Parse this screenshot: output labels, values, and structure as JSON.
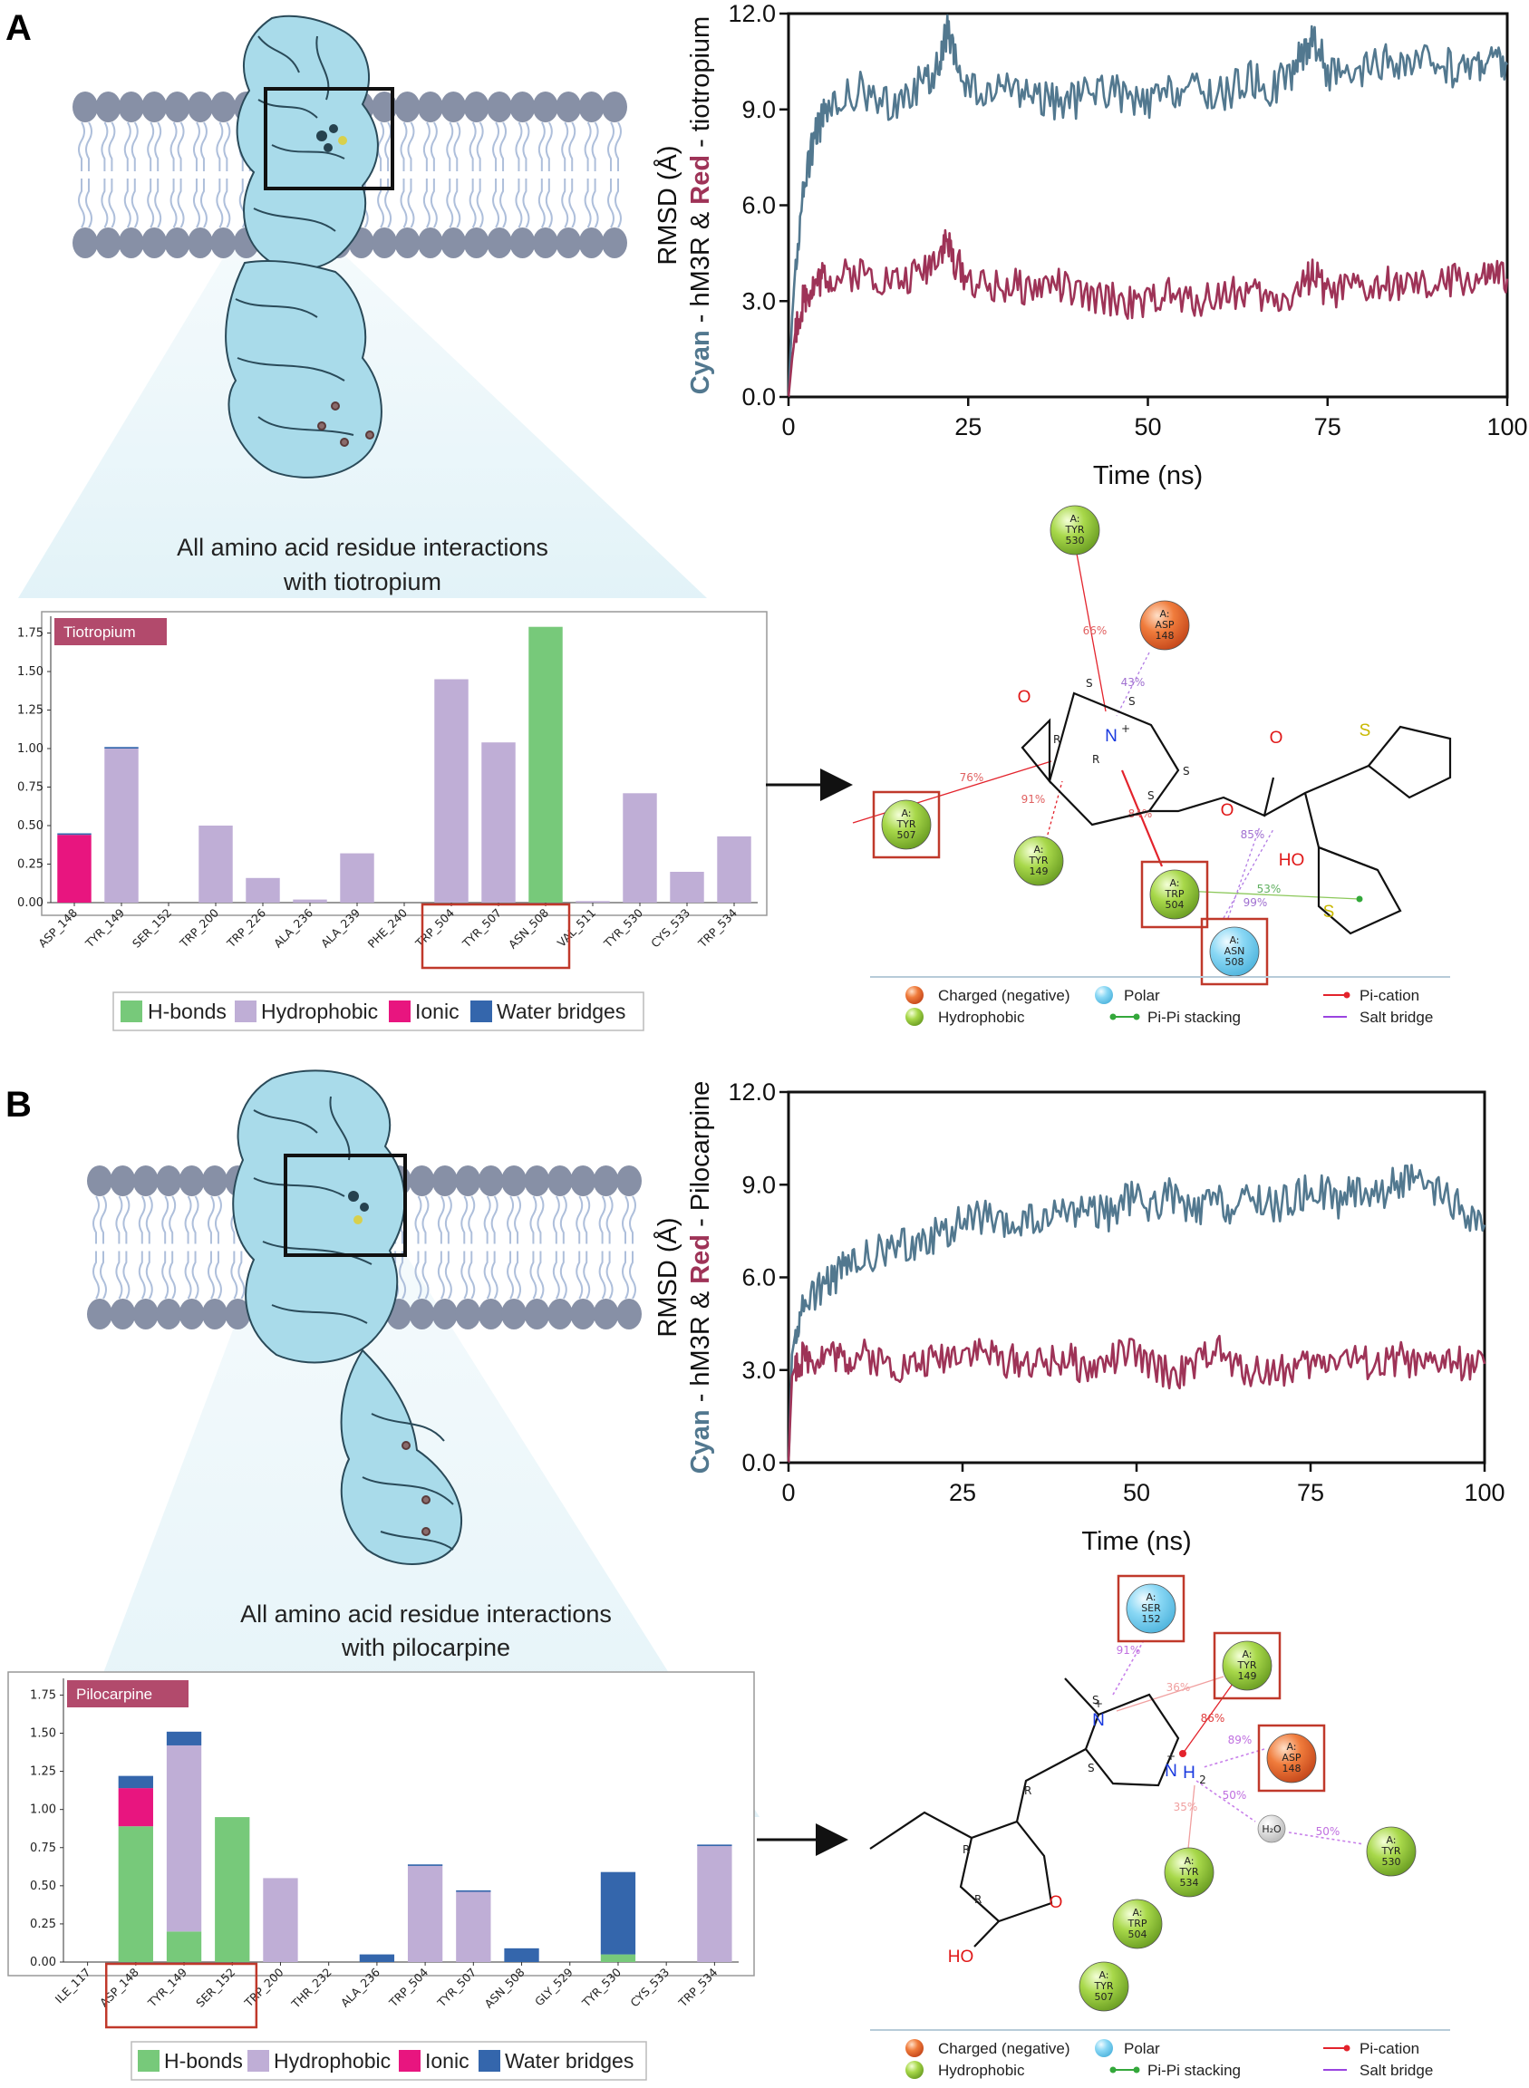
{
  "colors": {
    "cyan_trace": "#52788f",
    "red_trace": "#9e3357",
    "hbond": "#77c97a",
    "hydrophobic": "#bfaed6",
    "ionic": "#e8157f",
    "water_bridge": "#3466ac",
    "protein_fill": "#a9dbea",
    "protein_stroke": "#2a4a59",
    "membrane_head": "#8790a6",
    "membrane_tail": "#aebfdb",
    "highlight_box": "#c0392b",
    "bar_title_bg": "#b24a6c",
    "node_negative": "#ea6a2c",
    "node_hydrophobic": "#8cc33b",
    "node_polar": "#7dcff0",
    "node_water": "#d9d9d9",
    "pi_cation": "#e3232c",
    "salt_bridge": "#9a44e0",
    "pi_pi": "#34a83b"
  },
  "panels": [
    {
      "letter": "A",
      "rmsd": {
        "ylabel_parts": [
          "Cyan",
          " - hM3R & ",
          "Red",
          " - tiotropium"
        ],
        "xlabel": "Time (ns)",
        "ylim": [
          0,
          12
        ],
        "xlim": [
          0,
          100
        ],
        "yticks": [
          "0.0",
          "3.0",
          "6.0",
          "9.0",
          "12.0"
        ],
        "xticks": [
          "0",
          "25",
          "50",
          "75",
          "100"
        ]
      },
      "caption": [
        "All amino acid residue interactions",
        "with tiotropium"
      ],
      "bar_title": "Tiotropium",
      "bar_yticks": [
        "0.00",
        "0.25",
        "0.50",
        "0.75",
        "1.00",
        "1.25",
        "1.50",
        "1.75"
      ],
      "legend": [
        "H-bonds",
        "Hydrophobic",
        "Ionic",
        "Water bridges"
      ],
      "interaction_legend": [
        "Charged (negative)",
        "Polar",
        "Pi-cation",
        "Hydrophobic",
        "Pi-Pi stacking",
        "Salt bridge"
      ],
      "atom_labels": [
        "O",
        "N",
        "+",
        "O",
        "O",
        "HO",
        "S",
        "S"
      ],
      "stereo_labels": [
        "S",
        "S",
        "R",
        "R",
        "S",
        "S"
      ],
      "nodes": [
        {
          "chain": "A:",
          "res": "TYR",
          "num": "530",
          "type": "hydrophobic"
        },
        {
          "chain": "A:",
          "res": "ASP",
          "num": "148",
          "type": "negative"
        },
        {
          "chain": "A:",
          "res": "TYR",
          "num": "507",
          "type": "hydrophobic"
        },
        {
          "chain": "A:",
          "res": "TYR",
          "num": "149",
          "type": "hydrophobic"
        },
        {
          "chain": "A:",
          "res": "TRP",
          "num": "504",
          "type": "hydrophobic"
        },
        {
          "chain": "A:",
          "res": "ASN",
          "num": "508",
          "type": "polar"
        }
      ],
      "percents": [
        "66%",
        "43%",
        "76%",
        "91%",
        "84%",
        "85%",
        "53%",
        "99%"
      ]
    },
    {
      "letter": "B",
      "rmsd": {
        "ylabel_parts": [
          "Cyan",
          " - hM3R & ",
          "Red",
          " - Pilocarpine"
        ],
        "xlabel": "Time (ns)",
        "ylim": [
          0,
          12
        ],
        "xlim": [
          0,
          100
        ],
        "yticks": [
          "0.0",
          "3.0",
          "6.0",
          "9.0",
          "12.0"
        ],
        "xticks": [
          "0",
          "25",
          "50",
          "75",
          "100"
        ]
      },
      "caption": [
        "All amino acid residue interactions",
        "with pilocarpine"
      ],
      "bar_title": "Pilocarpine",
      "bar_yticks": [
        "0.00",
        "0.25",
        "0.50",
        "0.75",
        "1.00",
        "1.25",
        "1.50",
        "1.75"
      ],
      "legend": [
        "H-bonds",
        "Hydrophobic",
        "Ionic",
        "Water bridges"
      ],
      "interaction_legend": [
        "Charged (negative)",
        "Polar",
        "Pi-cation",
        "Hydrophobic",
        "Pi-Pi stacking",
        "Salt bridge"
      ],
      "atom_labels": [
        "N",
        "+",
        "N",
        "+",
        "H",
        "2",
        "O",
        "HO",
        "H₂O"
      ],
      "stereo_labels": [
        "S",
        "S",
        "R",
        "R",
        "R"
      ],
      "nodes": [
        {
          "chain": "A:",
          "res": "SER",
          "num": "152",
          "type": "polar"
        },
        {
          "chain": "A:",
          "res": "TYR",
          "num": "149",
          "type": "hydrophobic"
        },
        {
          "chain": "A:",
          "res": "ASP",
          "num": "148",
          "type": "negative"
        },
        {
          "chain": "A:",
          "res": "TYR",
          "num": "534",
          "type": "hydrophobic"
        },
        {
          "chain": "A:",
          "res": "TRP",
          "num": "504",
          "type": "hydrophobic"
        },
        {
          "chain": "A:",
          "res": "TYR",
          "num": "507",
          "type": "hydrophobic"
        },
        {
          "chain": "A:",
          "res": "TYR",
          "num": "530",
          "type": "hydrophobic"
        }
      ],
      "percents": [
        "91%",
        "36%",
        "86%",
        "89%",
        "50%",
        "35%",
        "50%"
      ]
    }
  ],
  "chart_data": [
    {
      "type": "line",
      "panel": "A",
      "xlabel": "Time (ns)",
      "ylabel": "RMSD (Å)",
      "xlim": [
        0,
        100
      ],
      "ylim": [
        0,
        12
      ],
      "grid": false,
      "series": [
        {
          "name": "Cyan",
          "color": "#52788f",
          "x": [
            0,
            0.5,
            1,
            2,
            3,
            4,
            5,
            7,
            10,
            13,
            16,
            19,
            21,
            22,
            23,
            25,
            28,
            31,
            34,
            37,
            40,
            43,
            46,
            49,
            52,
            55,
            58,
            61,
            64,
            67,
            70,
            72,
            73,
            75,
            78,
            81,
            84,
            87,
            90,
            93,
            96,
            98,
            100
          ],
          "y": [
            0.0,
            2.5,
            4.2,
            6.3,
            7.6,
            8.4,
            8.8,
            9.2,
            9.6,
            9.1,
            9.4,
            9.9,
            10.3,
            11.5,
            10.6,
            9.7,
            9.3,
            9.8,
            9.5,
            9.2,
            9.3,
            9.7,
            9.5,
            9.1,
            9.4,
            9.7,
            9.5,
            9.5,
            10.0,
            9.6,
            10.2,
            10.9,
            11.3,
            10.2,
            9.8,
            10.3,
            10.5,
            10.3,
            10.6,
            10.2,
            10.5,
            10.6,
            10.4
          ]
        },
        {
          "name": "Red",
          "color": "#9e3357",
          "x": [
            0,
            0.5,
            1,
            2,
            3,
            4,
            5,
            7,
            10,
            13,
            16,
            19,
            21,
            22,
            23,
            25,
            28,
            31,
            34,
            37,
            40,
            43,
            46,
            49,
            52,
            55,
            58,
            61,
            64,
            67,
            70,
            72,
            73,
            75,
            78,
            81,
            84,
            87,
            90,
            93,
            96,
            98,
            100
          ],
          "y": [
            0.0,
            1.2,
            2.1,
            3.0,
            3.4,
            3.6,
            3.8,
            3.7,
            3.9,
            3.7,
            3.6,
            4.0,
            4.6,
            4.9,
            4.3,
            3.7,
            3.4,
            3.5,
            3.4,
            3.6,
            3.2,
            3.0,
            3.1,
            2.8,
            3.3,
            3.0,
            3.1,
            3.3,
            3.3,
            3.0,
            3.2,
            3.6,
            3.9,
            3.2,
            3.4,
            3.3,
            3.6,
            3.4,
            3.4,
            3.7,
            3.6,
            3.8,
            3.7
          ]
        }
      ]
    },
    {
      "type": "bar",
      "panel": "A",
      "title": "Tiotropium",
      "ylim": [
        0,
        1.8
      ],
      "categories": [
        "ASP_148",
        "TYR_149",
        "SER_152",
        "TRP_200",
        "TRP_226",
        "ALA_236",
        "ALA_239",
        "PHE_240",
        "TRP_504",
        "TYR_507",
        "ASN_508",
        "VAL_511",
        "TYR_530",
        "CYS_533",
        "TRP_534"
      ],
      "highlighted": [
        "TRP_504",
        "TYR_507",
        "ASN_508"
      ],
      "series": [
        {
          "name": "H-bonds",
          "values": [
            0,
            0,
            0,
            0,
            0,
            0,
            0,
            0,
            0,
            0,
            1.79,
            0,
            0,
            0,
            0
          ]
        },
        {
          "name": "Hydrophobic",
          "values": [
            0,
            1.0,
            0,
            0.5,
            0.16,
            0.02,
            0.32,
            0,
            1.45,
            1.04,
            0,
            0.01,
            0.71,
            0.2,
            0.43
          ]
        },
        {
          "name": "Ionic",
          "values": [
            0.44,
            0,
            0,
            0,
            0,
            0,
            0,
            0,
            0,
            0,
            0,
            0,
            0,
            0,
            0
          ]
        },
        {
          "name": "Water bridges",
          "values": [
            0.01,
            0.01,
            0,
            0,
            0,
            0,
            0,
            0,
            0,
            0,
            0,
            0,
            0,
            0,
            0
          ]
        }
      ]
    },
    {
      "type": "line",
      "panel": "B",
      "xlabel": "Time (ns)",
      "ylabel": "RMSD (Å)",
      "xlim": [
        0,
        100
      ],
      "ylim": [
        0,
        12
      ],
      "grid": false,
      "series": [
        {
          "name": "Cyan",
          "color": "#52788f",
          "x": [
            0,
            0.5,
            1,
            2,
            4,
            6,
            8,
            10,
            13,
            16,
            19,
            22,
            25,
            28,
            31,
            34,
            37,
            40,
            43,
            46,
            49,
            52,
            55,
            58,
            61,
            64,
            67,
            70,
            73,
            76,
            79,
            82,
            85,
            88,
            91,
            94,
            97,
            100
          ],
          "y": [
            0.0,
            3.5,
            4.2,
            5.0,
            5.6,
            5.9,
            6.3,
            6.5,
            6.8,
            7.0,
            7.2,
            7.4,
            7.8,
            8.0,
            7.5,
            7.9,
            7.7,
            8.2,
            8.3,
            8.0,
            8.6,
            8.3,
            8.7,
            8.0,
            8.5,
            8.2,
            8.6,
            8.3,
            8.6,
            8.9,
            8.5,
            8.9,
            8.7,
            9.2,
            8.9,
            8.6,
            8.1,
            7.7
          ]
        },
        {
          "name": "Red",
          "color": "#9e3357",
          "x": [
            0,
            0.5,
            1,
            2,
            4,
            6,
            8,
            10,
            13,
            16,
            19,
            22,
            25,
            28,
            31,
            34,
            37,
            40,
            43,
            46,
            49,
            52,
            55,
            58,
            61,
            64,
            67,
            70,
            73,
            76,
            79,
            82,
            85,
            88,
            91,
            94,
            97,
            100
          ],
          "y": [
            0.0,
            2.8,
            3.1,
            3.4,
            3.4,
            3.6,
            3.3,
            3.5,
            3.3,
            3.1,
            3.2,
            3.4,
            3.7,
            3.6,
            3.3,
            3.3,
            3.2,
            3.4,
            3.0,
            3.3,
            3.6,
            3.1,
            2.9,
            3.0,
            3.8,
            3.1,
            3.0,
            3.0,
            3.1,
            3.2,
            3.5,
            3.3,
            3.1,
            3.4,
            3.0,
            3.3,
            3.2,
            3.2
          ]
        }
      ]
    },
    {
      "type": "bar",
      "panel": "B",
      "title": "Pilocarpine",
      "ylim": [
        0,
        1.8
      ],
      "categories": [
        "ILE_117",
        "ASP_148",
        "TYR_149",
        "SER_152",
        "TRP_200",
        "THR_232",
        "ALA_236",
        "TRP_504",
        "TYR_507",
        "ASN_508",
        "GLY_529",
        "TYR_530",
        "CYS_533",
        "TRP_534"
      ],
      "highlighted": [
        "ASP_148",
        "TYR_149",
        "SER_152"
      ],
      "series": [
        {
          "name": "H-bonds",
          "values": [
            0,
            0.89,
            0.2,
            0.95,
            0,
            0,
            0,
            0,
            0,
            0,
            0,
            0.05,
            0,
            0
          ]
        },
        {
          "name": "Hydrophobic",
          "values": [
            0,
            0,
            1.22,
            0,
            0.55,
            0,
            0,
            0.63,
            0.46,
            0,
            0,
            0,
            0,
            0.76
          ]
        },
        {
          "name": "Ionic",
          "values": [
            0,
            0.25,
            0,
            0,
            0,
            0,
            0,
            0,
            0,
            0,
            0,
            0,
            0,
            0
          ]
        },
        {
          "name": "Water bridges",
          "values": [
            0,
            0.08,
            0.09,
            0,
            0,
            0,
            0.05,
            0.01,
            0.01,
            0.09,
            0,
            0.54,
            0,
            0.01
          ]
        }
      ]
    }
  ]
}
